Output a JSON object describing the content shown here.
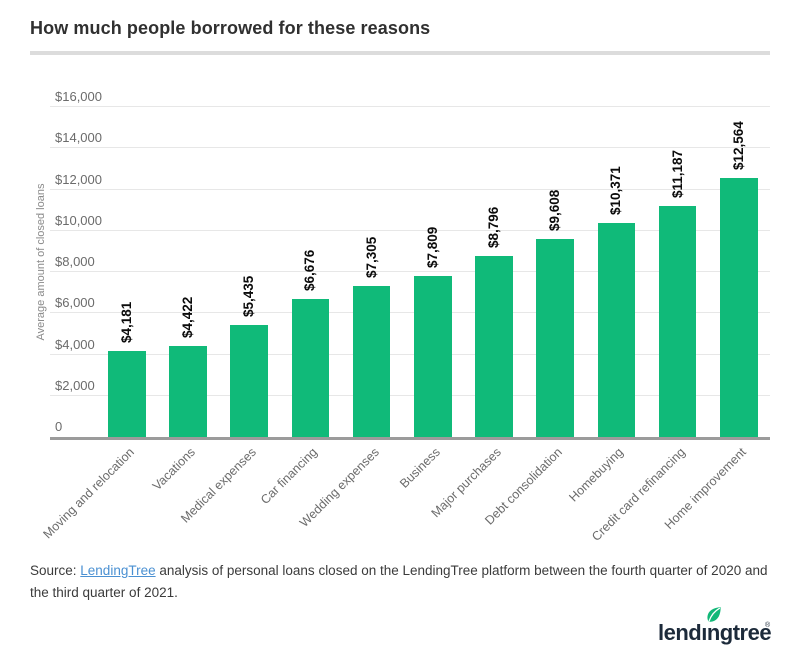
{
  "header": {
    "title": "How much people borrowed for these reasons"
  },
  "chart_data": {
    "type": "bar",
    "title": "How much people borrowed for these reasons",
    "categories": [
      "Moving and relocation",
      "Vacations",
      "Medical expenses",
      "Car financing",
      "Wedding expenses",
      "Business",
      "Major purchases",
      "Debt consolidation",
      "Homebuying",
      "Credit card refinancing",
      "Home improvement"
    ],
    "values": [
      4181,
      4422,
      5435,
      6676,
      7305,
      7809,
      8796,
      9608,
      10371,
      11187,
      12564
    ],
    "value_labels": [
      "$4,181",
      "$4,422",
      "$5,435",
      "$6,676",
      "$7,305",
      "$7,809",
      "$8,796",
      "$9,608",
      "$10,371",
      "$11,187",
      "$12,564"
    ],
    "xlabel": "",
    "ylabel": "Average amount of closed loans",
    "ylim": [
      0,
      16000
    ],
    "yticks": [
      {
        "value": 0,
        "label": "0"
      },
      {
        "value": 2000,
        "label": "$2,000"
      },
      {
        "value": 4000,
        "label": "$4,000"
      },
      {
        "value": 6000,
        "label": "$6,000"
      },
      {
        "value": 8000,
        "label": "$8,000"
      },
      {
        "value": 10000,
        "label": "$10,000"
      },
      {
        "value": 12000,
        "label": "$12,000"
      },
      {
        "value": 14000,
        "label": "$14,000"
      },
      {
        "value": 16000,
        "label": "$16,000"
      }
    ],
    "grid": "horizontal",
    "legend": "none",
    "bar_color": "#10ba79"
  },
  "source": {
    "prefix": "Source: ",
    "link": "LendingTree",
    "suffix": " analysis of personal loans closed on the LendingTree platform between the fourth quarter of 2020 and the third quarter of 2021."
  },
  "logo": {
    "wordmark": "lendıngtree",
    "registered_mark": "®"
  },
  "colors": {
    "bar_green": "#10ba79",
    "leaf_green": "#12b878",
    "logo_navy": "#1c2a3a",
    "link_blue": "#4a90d2",
    "gridline": "#e7e7e7",
    "axis_line": "#9b9b9b",
    "divider": "#dcdcdc",
    "title_text": "#303030",
    "tick_text": "#6b6b6b"
  }
}
